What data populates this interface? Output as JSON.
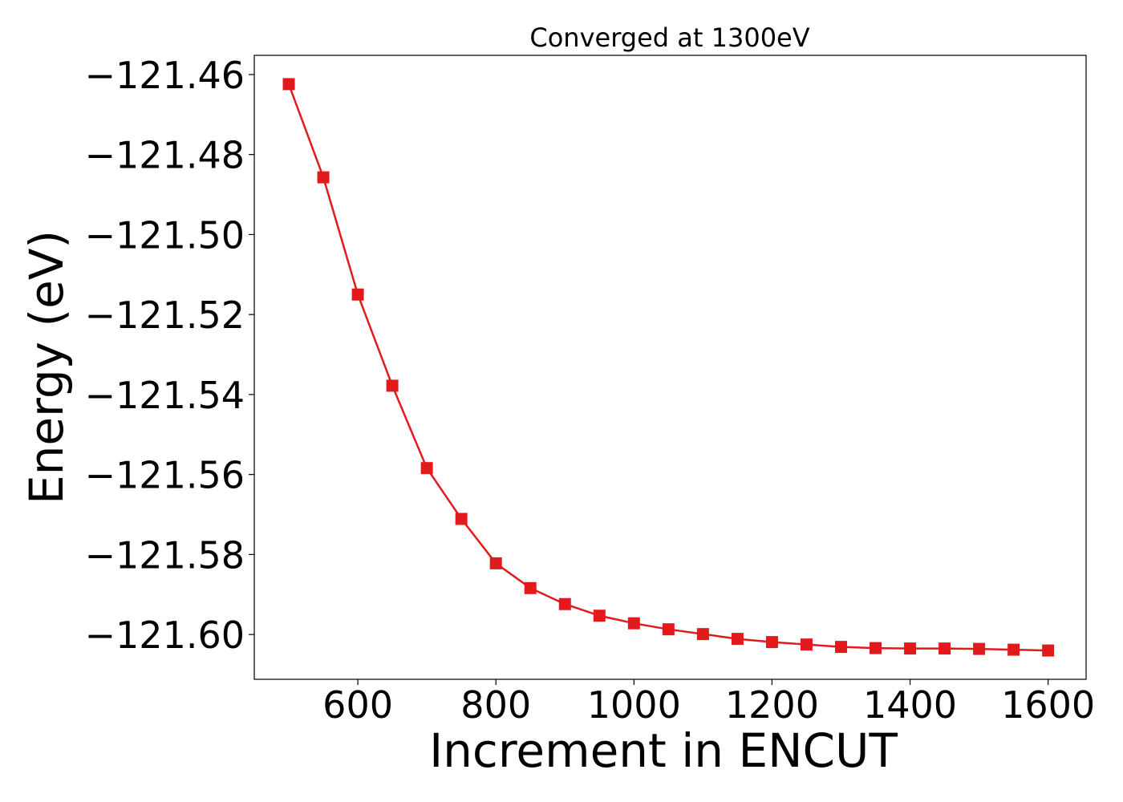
{
  "chart_data": {
    "type": "line",
    "title": "Converged at 1300eV",
    "xlabel": "Increment in ENCUT",
    "ylabel": "Energy (eV)",
    "xlim": [
      450,
      1655
    ],
    "ylim": [
      -121.6112,
      -121.4552
    ],
    "x_ticks": [
      600,
      800,
      1000,
      1200,
      1400,
      1600
    ],
    "y_ticks": [
      -121.46,
      -121.48,
      -121.5,
      -121.52,
      -121.54,
      -121.56,
      -121.58,
      -121.6
    ],
    "y_tick_labels": [
      "−121.46",
      "−121.48",
      "−121.50",
      "−121.52",
      "−121.54",
      "−121.56",
      "−121.58",
      "−121.60"
    ],
    "x_tick_labels": [
      "600",
      "800",
      "1000",
      "1200",
      "1400",
      "1600"
    ],
    "grid": false,
    "legend": "none",
    "marker": "square",
    "series": [
      {
        "color": "#e31a1c",
        "x": [
          500,
          550,
          600,
          650,
          700,
          750,
          800,
          850,
          900,
          950,
          1000,
          1050,
          1100,
          1150,
          1200,
          1250,
          1300,
          1350,
          1400,
          1450,
          1500,
          1550,
          1600
        ],
        "y": [
          -121.4624,
          -121.4857,
          -121.515,
          -121.5378,
          -121.5584,
          -121.5711,
          -121.5822,
          -121.5884,
          -121.5924,
          -121.5953,
          -121.5972,
          -121.5987,
          -121.5999,
          -121.6011,
          -121.6019,
          -121.6025,
          -121.6031,
          -121.6034,
          -121.6035,
          -121.6035,
          -121.6036,
          -121.6038,
          -121.604
        ]
      }
    ]
  }
}
